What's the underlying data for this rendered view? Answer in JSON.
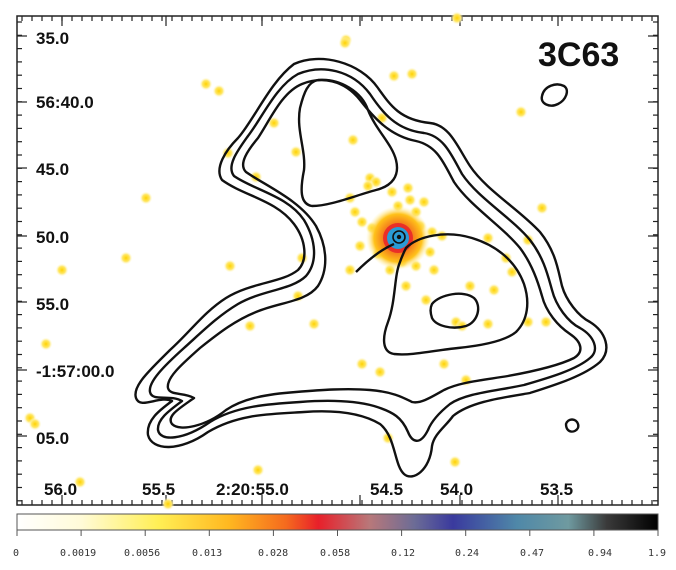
{
  "title": "3C63",
  "y_ticks": [
    "35.0",
    "56:40.0",
    "45.0",
    "50.0",
    "55.0",
    "-1:57:00.0",
    "05.0"
  ],
  "x_ticks": [
    "56.0",
    "55.5",
    "2:20:55.0",
    "54.5",
    "54.0",
    "53.5"
  ],
  "colorbar_ticks": [
    "0",
    "0.0019",
    "0.0056",
    "0.013",
    "0.028",
    "0.058",
    "0.12",
    "0.24",
    "0.47",
    "0.94",
    "1.9"
  ],
  "colors": {
    "contour": "#111111",
    "source_core": "#2a9bd6",
    "source_halo": "#e8232a",
    "photon": "#ffd21a"
  }
}
